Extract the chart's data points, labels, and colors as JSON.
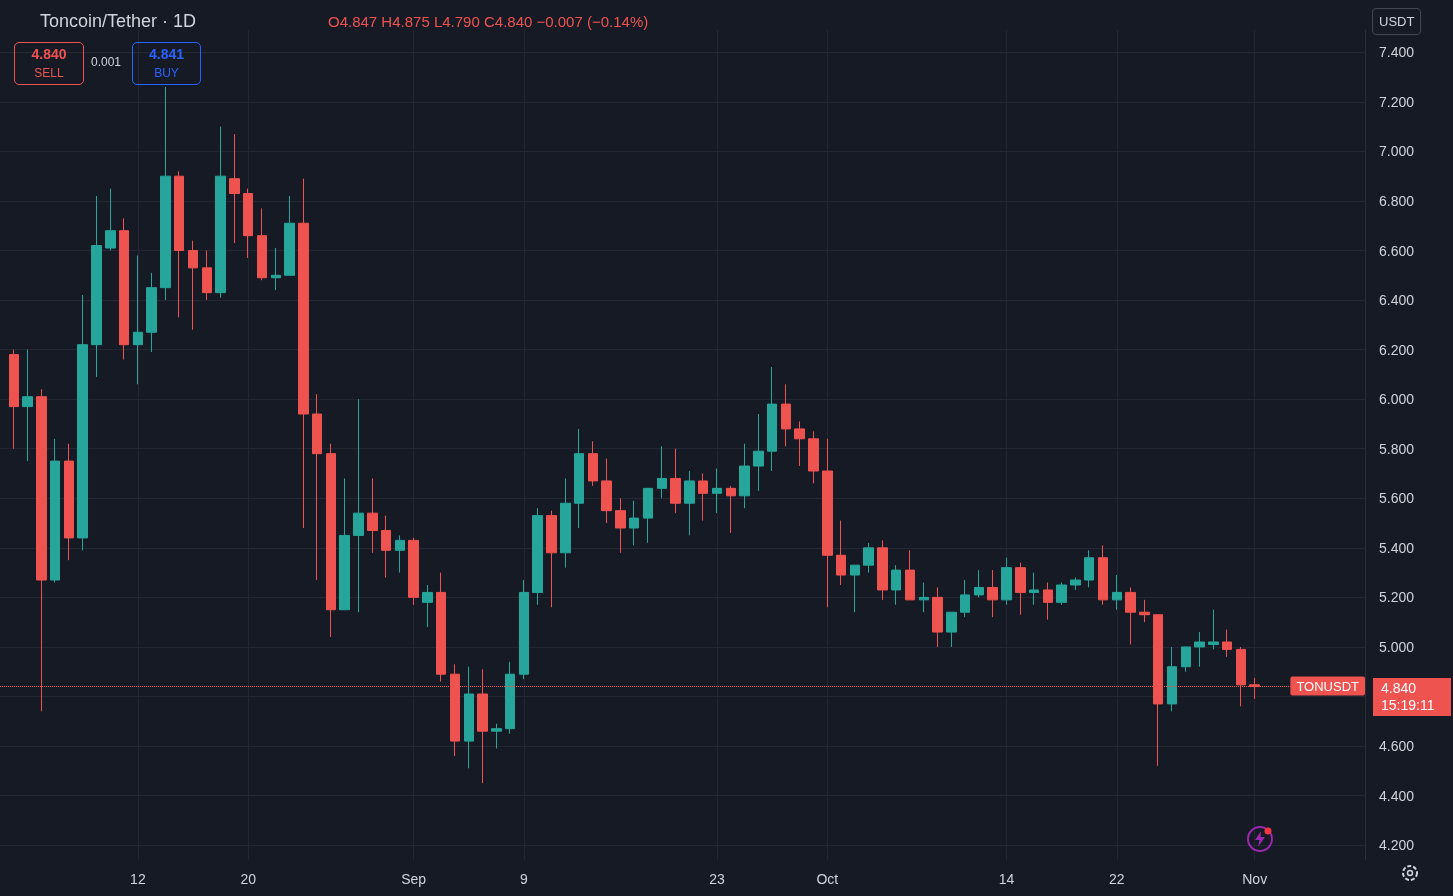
{
  "chart_data": {
    "type": "candlestick",
    "title": "Toncoin/Tether · 1D",
    "annotations": [
      "O4.847 H4.875 L4.790 C4.840 −0.007 (−0.14%)",
      "4.840",
      "SELL",
      "0.001",
      "4.841",
      "BUY",
      "USDT",
      "15:19:11"
    ],
    "x": [
      "--08-03",
      "--08-04",
      "--08-05",
      "--08-06",
      "--08-07",
      "--08-08",
      "--08-09",
      "--08-10",
      "--08-11",
      "--08-12",
      "--08-13",
      "--08-14",
      "--08-15",
      "--08-16",
      "--08-17",
      "--08-18",
      "--08-19",
      "--08-20",
      "--08-21",
      "--08-22",
      "--08-23",
      "--08-24",
      "--08-25",
      "--08-26",
      "--08-27",
      "--08-28",
      "--08-29",
      "--08-30",
      "--08-31",
      "--09-01",
      "--09-02",
      "--09-03",
      "--09-04",
      "--09-05",
      "--09-06",
      "--09-07",
      "--09-08",
      "--09-09",
      "--09-10",
      "--09-11",
      "--09-12",
      "--09-13",
      "--09-14",
      "--09-15",
      "--09-16",
      "--09-17",
      "--09-18",
      "--09-19",
      "--09-20",
      "--09-21",
      "--09-22",
      "--09-23",
      "--09-24",
      "--09-25",
      "--09-26",
      "--09-27",
      "--09-28",
      "--09-29",
      "--09-30",
      "--10-01",
      "--10-02",
      "--10-03",
      "--10-04",
      "--10-05",
      "--10-06",
      "--10-07",
      "--10-08",
      "--10-09",
      "--10-10",
      "--10-11",
      "--10-12",
      "--10-13",
      "--10-14",
      "--10-15",
      "--10-16",
      "--10-17",
      "--10-18",
      "--10-19",
      "--10-20",
      "--10-21",
      "--10-22",
      "--10-23",
      "--10-24",
      "--10-25",
      "--10-26",
      "--10-27",
      "--10-28",
      "--10-29",
      "--10-30",
      "--10-31",
      "--11-01"
    ],
    "ohlc": [
      [
        6.18,
        6.2,
        5.8,
        5.97
      ],
      [
        5.97,
        6.2,
        5.75,
        6.01
      ],
      [
        6.01,
        6.04,
        4.74,
        5.27
      ],
      [
        5.27,
        5.84,
        5.26,
        5.75
      ],
      [
        5.75,
        5.82,
        5.35,
        5.44
      ],
      [
        5.44,
        6.42,
        5.39,
        6.22
      ],
      [
        6.22,
        6.82,
        6.09,
        6.62
      ],
      [
        6.61,
        6.85,
        6.6,
        6.68
      ],
      [
        6.68,
        6.73,
        6.16,
        6.22
      ],
      [
        6.22,
        6.58,
        6.06,
        6.27
      ],
      [
        6.27,
        6.51,
        6.19,
        6.45
      ],
      [
        6.45,
        7.26,
        6.4,
        6.9
      ],
      [
        6.9,
        6.92,
        6.33,
        6.6
      ],
      [
        6.6,
        6.64,
        6.28,
        6.53
      ],
      [
        6.53,
        6.6,
        6.4,
        6.43
      ],
      [
        6.43,
        7.1,
        6.41,
        6.9
      ],
      [
        6.89,
        7.07,
        6.63,
        6.83
      ],
      [
        6.83,
        6.85,
        6.57,
        6.66
      ],
      [
        6.66,
        6.77,
        6.48,
        6.49
      ],
      [
        6.49,
        6.61,
        6.44,
        6.5
      ],
      [
        6.5,
        6.82,
        6.5,
        6.71
      ],
      [
        6.71,
        6.89,
        5.48,
        5.94
      ],
      [
        5.94,
        6.02,
        5.27,
        5.78
      ],
      [
        5.78,
        5.82,
        5.04,
        5.15
      ],
      [
        5.15,
        5.68,
        5.15,
        5.45
      ],
      [
        5.45,
        6.0,
        5.14,
        5.54
      ],
      [
        5.54,
        5.68,
        5.38,
        5.47
      ],
      [
        5.47,
        5.53,
        5.28,
        5.39
      ],
      [
        5.39,
        5.45,
        5.3,
        5.43
      ],
      [
        5.43,
        5.44,
        5.17,
        5.2
      ],
      [
        5.18,
        5.25,
        5.08,
        5.22
      ],
      [
        5.22,
        5.3,
        4.86,
        4.89
      ],
      [
        4.89,
        4.93,
        4.56,
        4.62
      ],
      [
        4.62,
        4.92,
        4.51,
        4.81
      ],
      [
        4.81,
        4.91,
        4.45,
        4.66
      ],
      [
        4.66,
        4.69,
        4.59,
        4.67
      ],
      [
        4.67,
        4.94,
        4.65,
        4.89
      ],
      [
        4.89,
        5.27,
        4.87,
        5.22
      ],
      [
        5.22,
        5.56,
        5.17,
        5.53
      ],
      [
        5.53,
        5.55,
        5.16,
        5.38
      ],
      [
        5.38,
        5.68,
        5.32,
        5.58
      ],
      [
        5.58,
        5.88,
        5.48,
        5.78
      ],
      [
        5.78,
        5.83,
        5.65,
        5.67
      ],
      [
        5.67,
        5.76,
        5.5,
        5.55
      ],
      [
        5.55,
        5.6,
        5.38,
        5.48
      ],
      [
        5.48,
        5.59,
        5.41,
        5.52
      ],
      [
        5.52,
        5.64,
        5.42,
        5.64
      ],
      [
        5.64,
        5.81,
        5.6,
        5.68
      ],
      [
        5.68,
        5.8,
        5.54,
        5.58
      ],
      [
        5.58,
        5.71,
        5.45,
        5.67
      ],
      [
        5.67,
        5.7,
        5.51,
        5.62
      ],
      [
        5.62,
        5.72,
        5.54,
        5.64
      ],
      [
        5.64,
        5.65,
        5.46,
        5.61
      ],
      [
        5.61,
        5.82,
        5.56,
        5.73
      ],
      [
        5.73,
        5.94,
        5.63,
        5.79
      ],
      [
        5.79,
        6.13,
        5.71,
        5.98
      ],
      [
        5.98,
        6.06,
        5.81,
        5.88
      ],
      [
        5.88,
        5.91,
        5.73,
        5.84
      ],
      [
        5.84,
        5.87,
        5.66,
        5.71
      ],
      [
        5.71,
        5.84,
        5.16,
        5.37
      ],
      [
        5.37,
        5.51,
        5.25,
        5.29
      ],
      [
        5.29,
        5.33,
        5.14,
        5.33
      ],
      [
        5.33,
        5.42,
        5.3,
        5.4
      ],
      [
        5.4,
        5.43,
        5.19,
        5.23
      ],
      [
        5.23,
        5.33,
        5.17,
        5.31
      ],
      [
        5.31,
        5.39,
        5.19,
        5.19
      ],
      [
        5.19,
        5.26,
        5.14,
        5.2
      ],
      [
        5.2,
        5.24,
        5.0,
        5.06
      ],
      [
        5.06,
        5.14,
        5.0,
        5.14
      ],
      [
        5.14,
        5.27,
        5.12,
        5.21
      ],
      [
        5.21,
        5.31,
        5.2,
        5.24
      ],
      [
        5.24,
        5.31,
        5.12,
        5.19
      ],
      [
        5.19,
        5.36,
        5.17,
        5.32
      ],
      [
        5.32,
        5.34,
        5.13,
        5.22
      ],
      [
        5.22,
        5.3,
        5.17,
        5.23
      ],
      [
        5.23,
        5.26,
        5.11,
        5.18
      ],
      [
        5.18,
        5.26,
        5.17,
        5.25
      ],
      [
        5.25,
        5.28,
        5.23,
        5.27
      ],
      [
        5.27,
        5.39,
        5.24,
        5.36
      ],
      [
        5.36,
        5.41,
        5.17,
        5.19
      ],
      [
        5.19,
        5.29,
        5.15,
        5.22
      ],
      [
        5.22,
        5.24,
        5.01,
        5.14
      ],
      [
        5.14,
        5.19,
        5.1,
        5.13
      ],
      [
        5.13,
        5.13,
        4.52,
        4.77
      ],
      [
        4.77,
        5.0,
        4.74,
        4.92
      ],
      [
        4.92,
        5.0,
        4.9,
        5.0
      ],
      [
        5.0,
        5.06,
        4.92,
        5.02
      ],
      [
        5.01,
        5.15,
        4.99,
        5.02
      ],
      [
        5.02,
        5.07,
        4.96,
        4.99
      ],
      [
        4.99,
        5.0,
        4.76,
        4.847
      ],
      [
        4.847,
        4.875,
        4.79,
        4.84
      ]
    ],
    "colors": [
      "#ef5350",
      "#26a69a",
      "#ef5350",
      "#26a69a",
      "#ef5350",
      "#26a69a",
      "#26a69a",
      "#26a69a",
      "#ef5350",
      "#26a69a",
      "#26a69a",
      "#26a69a",
      "#ef5350",
      "#ef5350",
      "#ef5350",
      "#26a69a",
      "#ef5350",
      "#ef5350",
      "#ef5350",
      "#26a69a",
      "#26a69a",
      "#ef5350",
      "#ef5350",
      "#ef5350",
      "#26a69a",
      "#26a69a",
      "#ef5350",
      "#ef5350",
      "#26a69a",
      "#ef5350",
      "#26a69a",
      "#ef5350",
      "#ef5350",
      "#26a69a",
      "#ef5350",
      "#26a69a",
      "#26a69a",
      "#26a69a",
      "#26a69a",
      "#ef5350",
      "#26a69a",
      "#26a69a",
      "#ef5350",
      "#ef5350",
      "#ef5350",
      "#26a69a",
      "#26a69a",
      "#26a69a",
      "#ef5350",
      "#26a69a",
      "#ef5350",
      "#26a69a",
      "#ef5350",
      "#26a69a",
      "#26a69a",
      "#26a69a",
      "#ef5350",
      "#ef5350",
      "#ef5350",
      "#ef5350",
      "#ef5350",
      "#26a69a",
      "#26a69a",
      "#ef5350",
      "#26a69a",
      "#ef5350",
      "#26a69a",
      "#ef5350",
      "#26a69a",
      "#26a69a",
      "#26a69a",
      "#ef5350",
      "#26a69a",
      "#ef5350",
      "#26a69a",
      "#ef5350",
      "#26a69a",
      "#26a69a",
      "#26a69a",
      "#ef5350",
      "#26a69a",
      "#ef5350",
      "#ef5350",
      "#ef5350",
      "#26a69a",
      "#26a69a",
      "#26a69a",
      "#26a69a",
      "#ef5350",
      "#ef5350",
      "#ef5350"
    ],
    "xlim": [
      "--08-02",
      "--11-09"
    ],
    "xticks": [
      {
        "value": "--08-12",
        "label": "12"
      },
      {
        "value": "--08-20",
        "label": "20"
      },
      {
        "value": "--09-01",
        "label": "Sep"
      },
      {
        "value": "--09-09",
        "label": "9"
      },
      {
        "value": "--09-23",
        "label": "23"
      },
      {
        "value": "--10-01",
        "label": "Oct"
      },
      {
        "value": "--10-14",
        "label": "14"
      },
      {
        "value": "--10-22",
        "label": "22"
      },
      {
        "value": "--11-01",
        "label": "Nov"
      }
    ],
    "ylim": [
      4.14,
      7.49
    ],
    "yticks": [
      {
        "value": 4.2,
        "label": "4.200"
      },
      {
        "value": 4.4,
        "label": "4.400"
      },
      {
        "value": 4.6,
        "label": "4.600"
      },
      {
        "value": 4.8,
        "label": null
      },
      {
        "value": 5.0,
        "label": "5.000"
      },
      {
        "value": 5.2,
        "label": "5.200"
      },
      {
        "value": 5.4,
        "label": "5.400"
      },
      {
        "value": 5.6,
        "label": "5.600"
      },
      {
        "value": 5.8,
        "label": "5.800"
      },
      {
        "value": 6.0,
        "label": "6.000"
      },
      {
        "value": 6.2,
        "label": "6.200"
      },
      {
        "value": 6.4,
        "label": "6.400"
      },
      {
        "value": 6.6,
        "label": "6.600"
      },
      {
        "value": 6.8,
        "label": "6.800"
      },
      {
        "value": 7.0,
        "label": "7.000"
      },
      {
        "value": 7.2,
        "label": "7.200"
      },
      {
        "value": 7.4,
        "label": "7.400"
      }
    ],
    "ref_lines": [
      {
        "axis": "y",
        "value": 4.84,
        "label": "TONUSDT",
        "color": "#ef5350",
        "line_style": "dotted"
      }
    ],
    "grid": true
  }
}
